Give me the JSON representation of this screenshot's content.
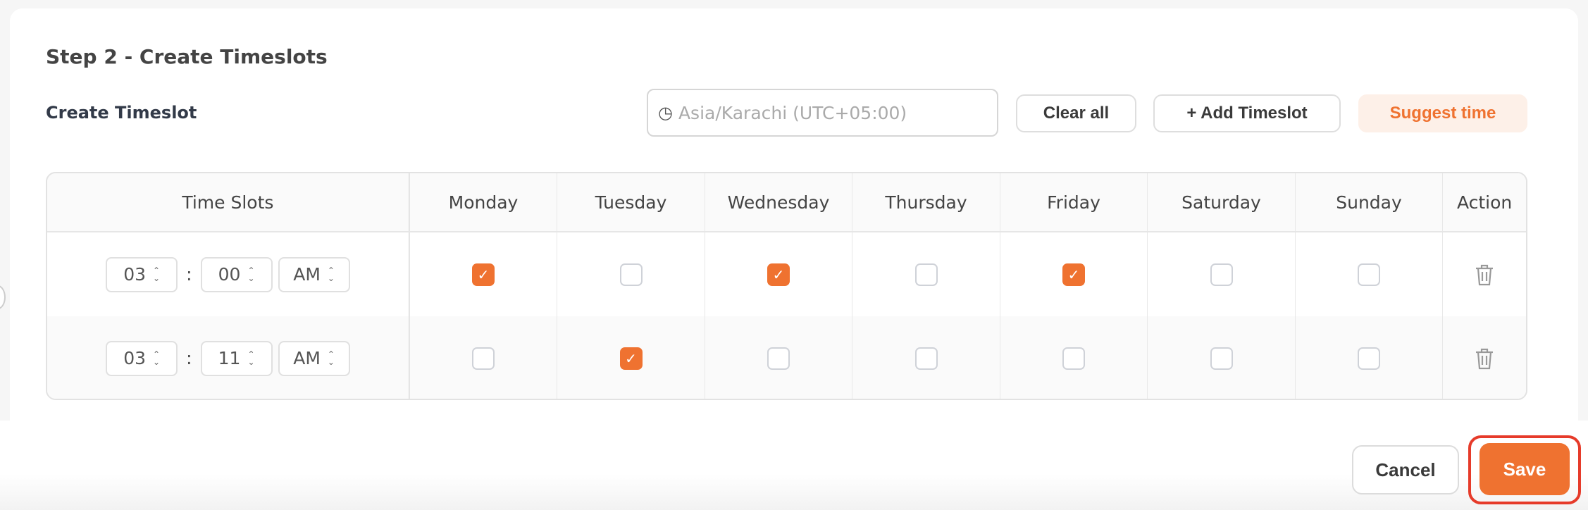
{
  "header": {
    "title": "Step 2 - Create Timeslots",
    "subtitle": "Create Timeslot"
  },
  "toolbar": {
    "timezone_placeholder": "Asia/Karachi (UTC+05:00)",
    "timezone_icon": "globe-clock-icon",
    "clear_all": "Clear all",
    "add_timeslot": "+ Add Timeslot",
    "suggest_time": "Suggest time"
  },
  "table": {
    "columns": [
      "Time Slots",
      "Monday",
      "Tuesday",
      "Wednesday",
      "Thursday",
      "Friday",
      "Saturday",
      "Sunday",
      "Action"
    ],
    "rows": [
      {
        "hour": "03",
        "minute": "00",
        "period": "AM",
        "days": [
          true,
          false,
          true,
          false,
          true,
          false,
          false
        ]
      },
      {
        "hour": "03",
        "minute": "11",
        "period": "AM",
        "days": [
          false,
          true,
          false,
          false,
          false,
          false,
          false
        ]
      }
    ]
  },
  "footer": {
    "cancel": "Cancel",
    "save": "Save"
  },
  "colors": {
    "accent": "#ef7230",
    "highlight": "#e63b2a"
  }
}
